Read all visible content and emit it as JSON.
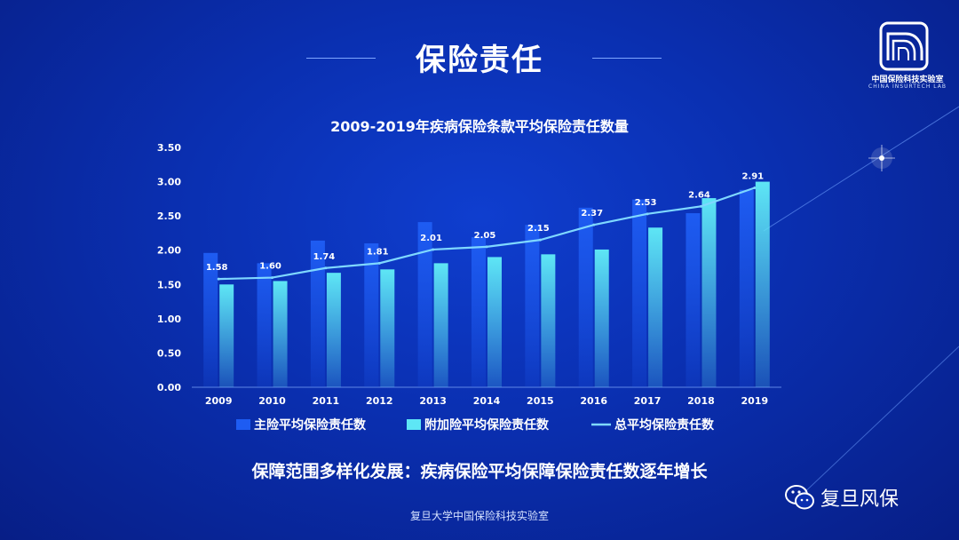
{
  "page": {
    "title": "保险责任",
    "subtitle": "保障范围多样化发展：疾病保险平均保障保险责任数逐年增长",
    "footer": "复旦大学中国保险科技实验室"
  },
  "logo": {
    "name_cn": "中国保险科技实验室",
    "name_en": "CHINA INSURTECH LAB"
  },
  "watermark": {
    "text": "复旦风保",
    "icon": "wechat-icon"
  },
  "colors": {
    "main_bar": "#1e5cf2",
    "rider_bar": "#5ee6f5",
    "total_line": "#7fd8ff"
  },
  "chart_data": {
    "type": "bar",
    "title": "2009-2019年疾病保险条款平均保险责任数量",
    "categories": [
      "2009",
      "2010",
      "2011",
      "2012",
      "2013",
      "2014",
      "2015",
      "2016",
      "2017",
      "2018",
      "2019"
    ],
    "ylim": [
      0,
      3.5
    ],
    "yticks": [
      "0.00",
      "0.50",
      "1.00",
      "1.50",
      "2.00",
      "2.50",
      "3.00",
      "3.50"
    ],
    "series": [
      {
        "name": "主险平均保险责任数",
        "type": "bar",
        "values": [
          1.96,
          1.81,
          2.14,
          2.1,
          2.41,
          2.19,
          2.37,
          2.62,
          2.74,
          2.54,
          2.88
        ]
      },
      {
        "name": "附加险平均保险责任数",
        "type": "bar",
        "values": [
          1.5,
          1.55,
          1.67,
          1.72,
          1.81,
          1.9,
          1.94,
          2.01,
          2.33,
          2.76,
          3.0
        ]
      },
      {
        "name": "总平均保险责任数",
        "type": "line",
        "values": [
          1.58,
          1.6,
          1.74,
          1.81,
          2.01,
          2.05,
          2.15,
          2.37,
          2.53,
          2.64,
          2.91
        ],
        "labels": [
          "1.58",
          "1.60",
          "1.74",
          "1.81",
          "2.01",
          "2.05",
          "2.15",
          "2.37",
          "2.53",
          "2.64",
          "2.91"
        ]
      }
    ],
    "legend_position": "bottom",
    "grid": false
  }
}
